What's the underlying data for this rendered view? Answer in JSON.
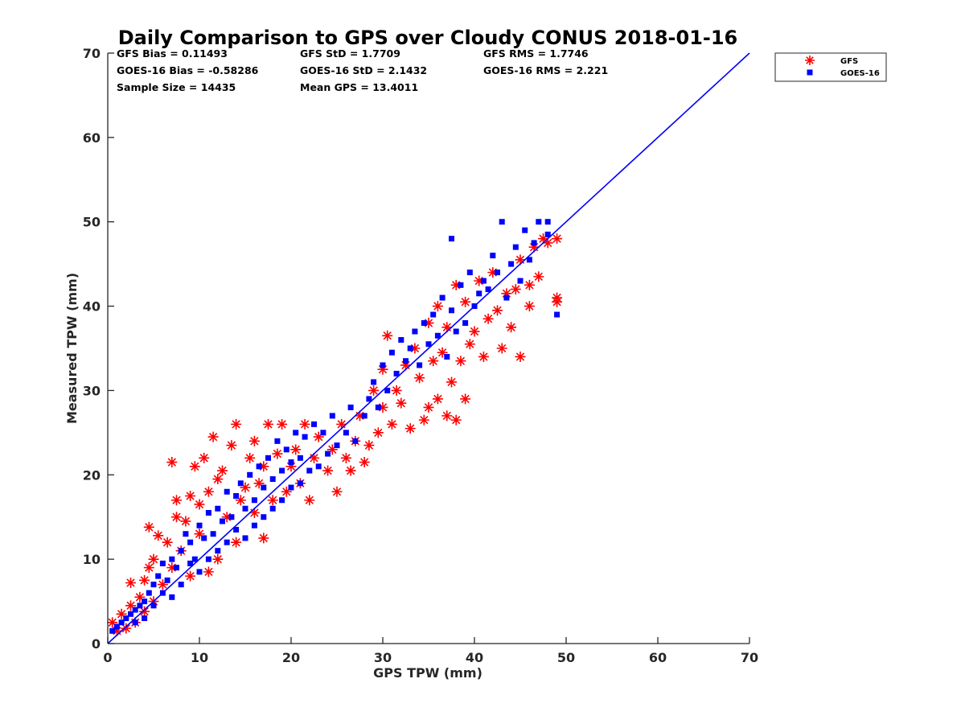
{
  "chart_data": {
    "type": "scatter",
    "title": "Daily Comparison to GPS over Cloudy CONUS 2018-01-16",
    "xlabel": "GPS TPW (mm)",
    "ylabel": "Measured TPW (mm)",
    "xlim": [
      0,
      70
    ],
    "ylim": [
      0,
      70
    ],
    "x_ticks": [
      "0",
      "10",
      "20",
      "30",
      "40",
      "50",
      "60",
      "70"
    ],
    "y_ticks": [
      "0",
      "10",
      "20",
      "30",
      "40",
      "50",
      "60",
      "70"
    ],
    "grid": false,
    "legend_position": "outside-top-right",
    "stats": [
      "GFS Bias = 0.11493",
      "GFS StD = 1.7709",
      "GFS RMS = 1.7746",
      "GOES-16 Bias = -0.58286",
      "GOES-16 StD = 2.1432",
      "GOES-16 RMS = 2.221",
      "Sample Size = 14435",
      "Mean GPS = 13.4011"
    ],
    "reference_line": {
      "x": [
        0,
        70
      ],
      "y": [
        0,
        70
      ],
      "color": "#0000ff"
    },
    "series": [
      {
        "name": "GFS",
        "marker": "asterisk",
        "color": "#ff0000",
        "points": [
          [
            0.5,
            2.5
          ],
          [
            1,
            1.5
          ],
          [
            1.5,
            3.5
          ],
          [
            2,
            1.8
          ],
          [
            2.5,
            4.5
          ],
          [
            2.5,
            7.2
          ],
          [
            3,
            2.5
          ],
          [
            3.5,
            5.5
          ],
          [
            4,
            3.8
          ],
          [
            4,
            7.5
          ],
          [
            4.5,
            9
          ],
          [
            4.5,
            13.8
          ],
          [
            5,
            5
          ],
          [
            5,
            10
          ],
          [
            5.5,
            12.8
          ],
          [
            6,
            7
          ],
          [
            6.5,
            12
          ],
          [
            7,
            21.5
          ],
          [
            7,
            9
          ],
          [
            7.5,
            15
          ],
          [
            7.5,
            17
          ],
          [
            8,
            11
          ],
          [
            8.5,
            14.5
          ],
          [
            9,
            8
          ],
          [
            9,
            17.5
          ],
          [
            9.5,
            21
          ],
          [
            10,
            13
          ],
          [
            10,
            16.5
          ],
          [
            10.5,
            22
          ],
          [
            11,
            8.5
          ],
          [
            11,
            18
          ],
          [
            11.5,
            24.5
          ],
          [
            12,
            10
          ],
          [
            12,
            19.5
          ],
          [
            12.5,
            20.5
          ],
          [
            13,
            15
          ],
          [
            13.5,
            23.5
          ],
          [
            14,
            12
          ],
          [
            14,
            26
          ],
          [
            14.5,
            17
          ],
          [
            15,
            18.5
          ],
          [
            15.5,
            22
          ],
          [
            16,
            15.5
          ],
          [
            16,
            24
          ],
          [
            16.5,
            19
          ],
          [
            17,
            12.5
          ],
          [
            17,
            21
          ],
          [
            17.5,
            26
          ],
          [
            18,
            17
          ],
          [
            18.5,
            22.5
          ],
          [
            19,
            26
          ],
          [
            19.5,
            18
          ],
          [
            20,
            21
          ],
          [
            20.5,
            23
          ],
          [
            21,
            19
          ],
          [
            21.5,
            26
          ],
          [
            22,
            17
          ],
          [
            22.5,
            22
          ],
          [
            23,
            24.5
          ],
          [
            24,
            20.5
          ],
          [
            24.5,
            23
          ],
          [
            25,
            18
          ],
          [
            25.5,
            26
          ],
          [
            26,
            22
          ],
          [
            26.5,
            20.5
          ],
          [
            27,
            24
          ],
          [
            27.5,
            27
          ],
          [
            28,
            21.5
          ],
          [
            28.5,
            23.5
          ],
          [
            29,
            30
          ],
          [
            29.5,
            25
          ],
          [
            30,
            28
          ],
          [
            30,
            32.5
          ],
          [
            30.5,
            36.5
          ],
          [
            31,
            26
          ],
          [
            31.5,
            30
          ],
          [
            32,
            28.5
          ],
          [
            32.5,
            33
          ],
          [
            33,
            25.5
          ],
          [
            33.5,
            35
          ],
          [
            34,
            31.5
          ],
          [
            34.5,
            26.5
          ],
          [
            35,
            28
          ],
          [
            35,
            38
          ],
          [
            35.5,
            33.5
          ],
          [
            36,
            29
          ],
          [
            36,
            40
          ],
          [
            36.5,
            34.5
          ],
          [
            37,
            27
          ],
          [
            37,
            37.5
          ],
          [
            37.5,
            31
          ],
          [
            38,
            26.5
          ],
          [
            38,
            42.5
          ],
          [
            38.5,
            33.5
          ],
          [
            39,
            29
          ],
          [
            39,
            40.5
          ],
          [
            39.5,
            35.5
          ],
          [
            40,
            37
          ],
          [
            40.5,
            43
          ],
          [
            41,
            34
          ],
          [
            41.5,
            38.5
          ],
          [
            42,
            44
          ],
          [
            42.5,
            39.5
          ],
          [
            43,
            35
          ],
          [
            43.5,
            41.5
          ],
          [
            44,
            37.5
          ],
          [
            44.5,
            42
          ],
          [
            45,
            34
          ],
          [
            45,
            45.5
          ],
          [
            46,
            40
          ],
          [
            46,
            42.5
          ],
          [
            46.5,
            47
          ],
          [
            47,
            43.5
          ],
          [
            47.5,
            48
          ],
          [
            48,
            47.5
          ],
          [
            49,
            48
          ],
          [
            49,
            40.5
          ],
          [
            49,
            41
          ]
        ]
      },
      {
        "name": "GOES-16",
        "marker": "square",
        "color": "#0000ff",
        "points": [
          [
            0.5,
            1.5
          ],
          [
            1,
            2
          ],
          [
            1.5,
            2.5
          ],
          [
            2,
            3
          ],
          [
            2.5,
            3.5
          ],
          [
            3,
            2.5
          ],
          [
            3,
            4
          ],
          [
            3.5,
            4.5
          ],
          [
            4,
            3
          ],
          [
            4,
            5
          ],
          [
            4.5,
            6
          ],
          [
            5,
            4.5
          ],
          [
            5,
            7
          ],
          [
            5.5,
            8
          ],
          [
            6,
            6
          ],
          [
            6,
            9.5
          ],
          [
            6.5,
            7.5
          ],
          [
            7,
            10
          ],
          [
            7,
            5.5
          ],
          [
            7.5,
            9
          ],
          [
            8,
            11
          ],
          [
            8,
            7
          ],
          [
            8.5,
            13
          ],
          [
            9,
            9.5
          ],
          [
            9,
            12
          ],
          [
            9.5,
            10
          ],
          [
            10,
            14
          ],
          [
            10,
            8.5
          ],
          [
            10.5,
            12.5
          ],
          [
            11,
            15.5
          ],
          [
            11,
            10
          ],
          [
            11.5,
            13
          ],
          [
            12,
            16
          ],
          [
            12,
            11
          ],
          [
            12.5,
            14.5
          ],
          [
            13,
            18
          ],
          [
            13,
            12
          ],
          [
            13.5,
            15
          ],
          [
            14,
            17.5
          ],
          [
            14,
            13.5
          ],
          [
            14.5,
            19
          ],
          [
            15,
            16
          ],
          [
            15,
            12.5
          ],
          [
            15.5,
            20
          ],
          [
            16,
            17
          ],
          [
            16,
            14
          ],
          [
            16.5,
            21
          ],
          [
            17,
            18.5
          ],
          [
            17,
            15
          ],
          [
            17.5,
            22
          ],
          [
            18,
            19.5
          ],
          [
            18,
            16
          ],
          [
            18.5,
            24
          ],
          [
            19,
            20.5
          ],
          [
            19,
            17
          ],
          [
            19.5,
            23
          ],
          [
            20,
            21.5
          ],
          [
            20,
            18.5
          ],
          [
            20.5,
            25
          ],
          [
            21,
            22
          ],
          [
            21,
            19
          ],
          [
            21.5,
            24.5
          ],
          [
            22,
            20.5
          ],
          [
            22.5,
            26
          ],
          [
            23,
            21
          ],
          [
            23.5,
            25
          ],
          [
            24,
            22.5
          ],
          [
            24.5,
            27
          ],
          [
            25,
            23.5
          ],
          [
            26,
            25
          ],
          [
            26.5,
            28
          ],
          [
            27,
            24
          ],
          [
            28,
            27
          ],
          [
            28.5,
            29
          ],
          [
            29,
            31
          ],
          [
            29.5,
            28
          ],
          [
            30,
            33
          ],
          [
            30.5,
            30
          ],
          [
            31,
            34.5
          ],
          [
            31.5,
            32
          ],
          [
            32,
            36
          ],
          [
            32.5,
            33.5
          ],
          [
            33,
            35
          ],
          [
            33.5,
            37
          ],
          [
            34,
            33
          ],
          [
            34.5,
            38
          ],
          [
            35,
            35.5
          ],
          [
            35.5,
            39
          ],
          [
            36,
            36.5
          ],
          [
            36.5,
            41
          ],
          [
            37,
            34
          ],
          [
            37.5,
            48
          ],
          [
            37.5,
            39.5
          ],
          [
            38,
            37
          ],
          [
            38.5,
            42.5
          ],
          [
            39,
            38
          ],
          [
            39.5,
            44
          ],
          [
            40,
            40
          ],
          [
            40.5,
            41.5
          ],
          [
            41,
            43
          ],
          [
            41.5,
            42
          ],
          [
            42,
            46
          ],
          [
            42.5,
            44
          ],
          [
            43,
            50
          ],
          [
            43.5,
            41
          ],
          [
            44,
            45
          ],
          [
            44.5,
            47
          ],
          [
            45,
            43
          ],
          [
            45.5,
            49
          ],
          [
            46,
            45.5
          ],
          [
            46.5,
            47.5
          ],
          [
            47,
            50
          ],
          [
            48,
            48.5
          ],
          [
            48,
            50
          ],
          [
            49,
            39
          ]
        ]
      }
    ]
  }
}
